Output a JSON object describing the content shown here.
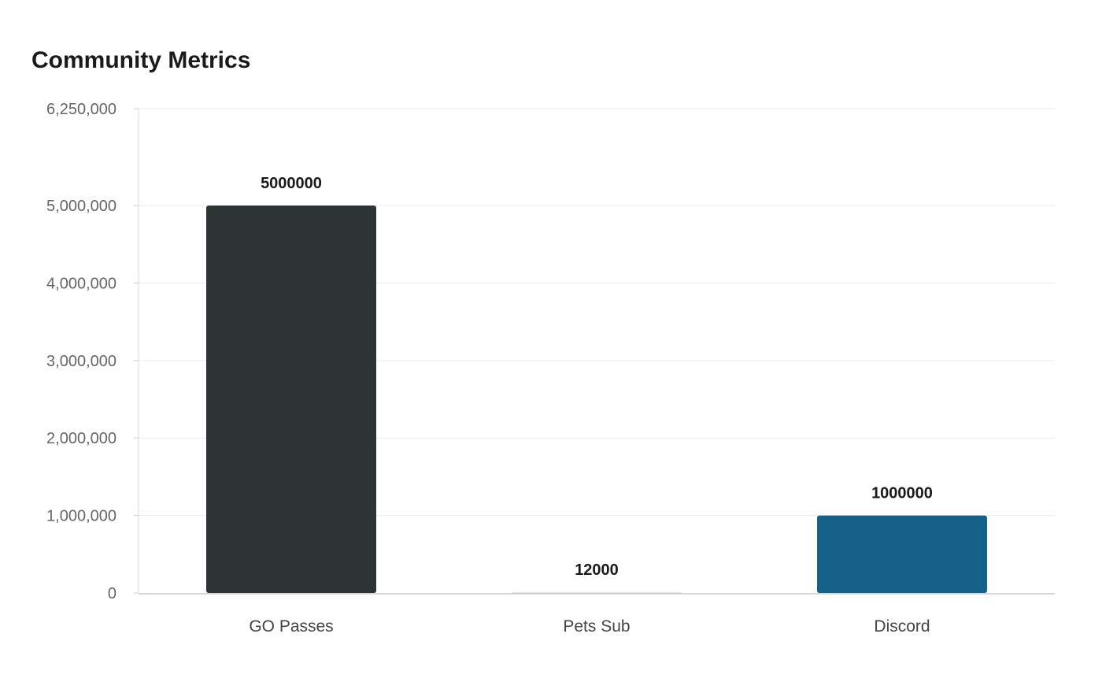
{
  "chart_data": {
    "type": "bar",
    "title": "Community Metrics",
    "xlabel": "",
    "ylabel": "",
    "categories": [
      "GO Passes",
      "Pets Sub",
      "Discord"
    ],
    "values": [
      5000000,
      12000,
      1000000
    ],
    "data_labels": [
      "5000000",
      "12000",
      "1000000"
    ],
    "colors": [
      "#2d3436",
      "#dfe0e0",
      "#176189"
    ],
    "ylim": [
      0,
      6250000
    ],
    "yticks": [
      0,
      1000000,
      2000000,
      3000000,
      4000000,
      5000000,
      6250000
    ],
    "ytick_labels": [
      "0",
      "1,000,000",
      "2,000,000",
      "3,000,000",
      "4,000,000",
      "5,000,000",
      "6,250,000"
    ],
    "grid": true,
    "legend": "none"
  }
}
